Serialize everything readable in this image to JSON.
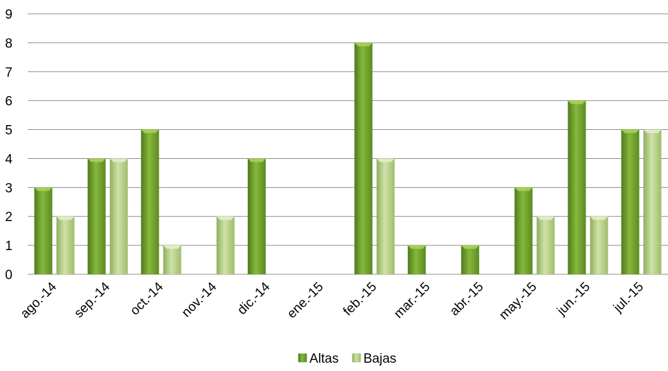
{
  "chart_data": {
    "type": "bar",
    "title": "",
    "xlabel": "",
    "ylabel": "",
    "ylim": [
      0,
      9
    ],
    "yticks": [
      0,
      1,
      2,
      3,
      4,
      5,
      6,
      7,
      8,
      9
    ],
    "grid": true,
    "legend_position": "bottom",
    "categories": [
      "ago.-14",
      "sep.-14",
      "oct.-14",
      "nov.-14",
      "dic.-14",
      "ene.-15",
      "feb.-15",
      "mar.-15",
      "abr.-15",
      "may.-15",
      "jun.-15",
      "jul.-15"
    ],
    "series": [
      {
        "name": "Altas",
        "color": "#76A030",
        "values": [
          3,
          4,
          5,
          0,
          4,
          0,
          8,
          1,
          1,
          3,
          6,
          5
        ]
      },
      {
        "name": "Bajas",
        "color": "#B5CF88",
        "values": [
          2,
          4,
          1,
          2,
          0,
          0,
          4,
          0,
          0,
          2,
          2,
          5
        ]
      }
    ]
  }
}
